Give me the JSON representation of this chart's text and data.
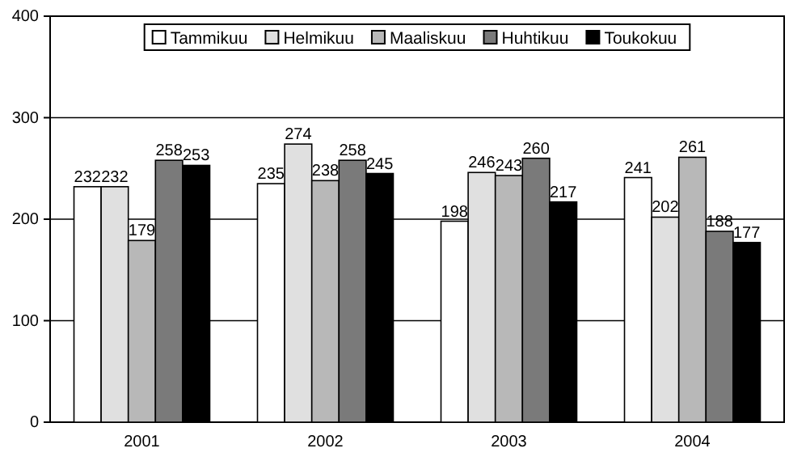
{
  "chart_data": {
    "type": "bar",
    "categories": [
      "2001",
      "2002",
      "2003",
      "2004"
    ],
    "series": [
      {
        "name": "Tammikuu",
        "color": "#ffffff",
        "values": [
          232,
          235,
          198,
          241
        ]
      },
      {
        "name": "Helmikuu",
        "color": "#e0e0e0",
        "values": [
          232,
          274,
          246,
          202
        ]
      },
      {
        "name": "Maaliskuu",
        "color": "#b8b8b8",
        "values": [
          179,
          238,
          243,
          261
        ]
      },
      {
        "name": "Huhtikuu",
        "color": "#7a7a7a",
        "values": [
          258,
          258,
          260,
          188
        ]
      },
      {
        "name": "Toukokuu",
        "color": "#000000",
        "values": [
          253,
          245,
          217,
          177
        ]
      }
    ],
    "ylim": [
      0,
      400
    ],
    "yticks": [
      0,
      100,
      200,
      300,
      400
    ],
    "grid": "y",
    "legend": "top",
    "data_labels": true
  }
}
